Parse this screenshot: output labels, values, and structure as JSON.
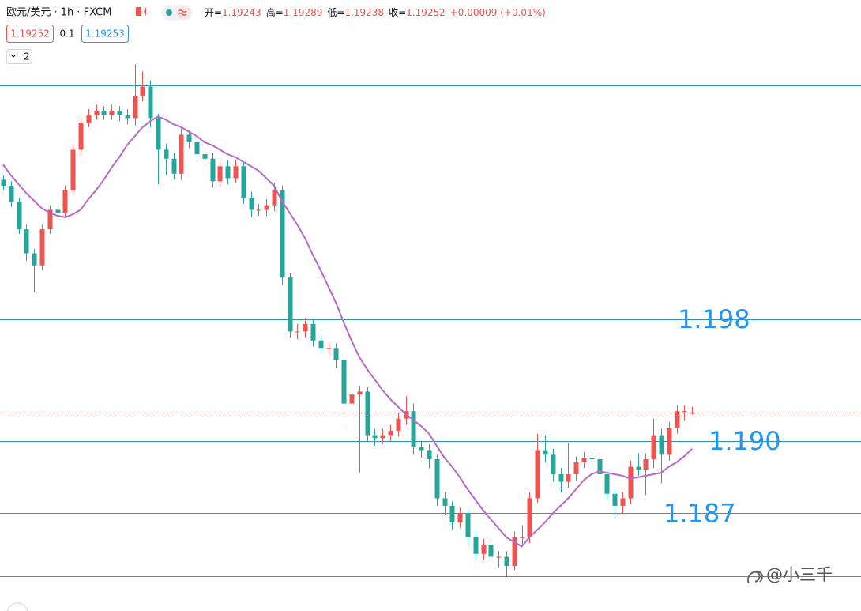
{
  "header": {
    "symbol": "欧元/美元 · 1h · FXCM",
    "ohlc": [
      {
        "label": "开=",
        "value": "1.19243"
      },
      {
        "label": "高=",
        "value": "1.19289"
      },
      {
        "label": "低=",
        "value": "1.19238"
      },
      {
        "label": "收=",
        "value": "1.19252"
      }
    ],
    "change": "+0.00009 (+0.01%)",
    "bid": "1.19252",
    "spread": "0.1",
    "ask": "1.19253",
    "collapse": "2"
  },
  "watermark": "@小三千",
  "chart_data": {
    "type": "candlestick",
    "up_color": "#ef5350",
    "down_color": "#26a69a",
    "ylim": [
      1.1793,
      1.2167
    ],
    "open": [
      1.208,
      1.2076,
      1.2065,
      1.2047,
      1.2031,
      1.2023,
      1.2047,
      1.206,
      1.2058,
      1.2073,
      1.21,
      1.2118,
      1.2123,
      1.2126,
      1.2123,
      1.2126,
      1.2123,
      1.2121,
      1.2136,
      1.2142,
      1.2121,
      1.21,
      1.2094,
      1.2084,
      1.211,
      1.2105,
      1.2097,
      1.2094,
      1.2079,
      1.2089,
      1.2081,
      1.2089,
      1.2068,
      1.206,
      1.206,
      1.2063,
      1.2073,
      1.2015,
      1.1979,
      1.1979,
      1.1984,
      1.1973,
      1.1968,
      1.1968,
      1.196,
      1.1931,
      1.1937,
      1.1939,
      1.191,
      1.1908,
      1.191,
      1.1913,
      1.1921,
      1.1926,
      1.1902,
      1.19,
      1.1894,
      1.1868,
      1.1863,
      1.1852,
      1.1858,
      1.1842,
      1.1831,
      1.1837,
      1.1829,
      1.1829,
      1.1823,
      1.1842,
      1.1842,
      1.1868,
      1.19,
      1.1897,
      1.1884,
      1.1879,
      1.1884,
      1.1892,
      1.1895,
      1.1894,
      1.1884,
      1.1871,
      1.1863,
      1.1868,
      1.1889,
      1.1887,
      1.1894,
      1.191,
      1.1897,
      1.1915,
      1.1926,
      1.19243
    ],
    "high": [
      1.2083,
      1.2079,
      1.2068,
      1.205,
      1.2034,
      1.205,
      1.2063,
      1.2063,
      1.2076,
      1.2103,
      1.2121,
      1.2127,
      1.213,
      1.2129,
      1.213,
      1.2129,
      1.2127,
      1.2157,
      1.2152,
      1.2146,
      1.2124,
      1.2104,
      1.2098,
      1.2114,
      1.2113,
      1.2109,
      1.2101,
      1.2098,
      1.2093,
      1.2093,
      1.2093,
      1.2092,
      1.2072,
      1.2064,
      1.2067,
      1.2078,
      1.2076,
      1.2018,
      1.1984,
      1.1988,
      1.1987,
      1.1977,
      1.1972,
      1.1971,
      1.1963,
      1.195,
      1.1943,
      1.1942,
      1.1914,
      1.1914,
      1.1917,
      1.1925,
      1.1936,
      1.1931,
      1.1906,
      1.1904,
      1.1897,
      1.1872,
      1.1866,
      1.1862,
      1.1861,
      1.1846,
      1.1841,
      1.184,
      1.1833,
      1.1833,
      1.1846,
      1.185,
      1.1872,
      1.1911,
      1.191,
      1.1901,
      1.1888,
      1.1905,
      1.1896,
      1.1899,
      1.1899,
      1.1897,
      1.1887,
      1.1874,
      1.1872,
      1.1893,
      1.1898,
      1.1898,
      1.1921,
      1.1914,
      1.1919,
      1.193,
      1.193,
      1.19289
    ],
    "low": [
      1.2073,
      1.2062,
      1.2044,
      1.2026,
      1.2005,
      1.202,
      1.2044,
      1.2055,
      1.2055,
      1.207,
      1.2097,
      1.2115,
      1.212,
      1.212,
      1.212,
      1.2119,
      1.2117,
      1.2116,
      1.2132,
      1.2115,
      1.2077,
      1.2083,
      1.208,
      1.208,
      1.2101,
      1.2092,
      1.209,
      1.2075,
      1.2076,
      1.2077,
      1.2078,
      1.2064,
      1.2055,
      1.2056,
      1.2056,
      1.2059,
      1.201,
      1.1975,
      1.1974,
      1.1975,
      1.1969,
      1.1964,
      1.1963,
      1.1955,
      1.1917,
      1.1927,
      1.1885,
      1.1906,
      1.1903,
      1.1904,
      1.1906,
      1.1909,
      1.1917,
      1.1897,
      1.1895,
      1.1888,
      1.1863,
      1.1857,
      1.1847,
      1.1848,
      1.1837,
      1.1827,
      1.1827,
      1.1825,
      1.1822,
      1.1816,
      1.182,
      1.1836,
      1.1838,
      1.1865,
      1.1892,
      1.1879,
      1.1872,
      1.1875,
      1.188,
      1.1888,
      1.189,
      1.188,
      1.1867,
      1.1856,
      1.1858,
      1.1864,
      1.1883,
      1.187,
      1.1888,
      1.1878,
      1.1893,
      1.1911,
      1.192,
      1.19238
    ],
    "close": [
      1.2076,
      1.2065,
      1.2047,
      1.2031,
      1.2023,
      1.2047,
      1.206,
      1.2058,
      1.2073,
      1.21,
      1.2118,
      1.2123,
      1.2126,
      1.2123,
      1.2126,
      1.2123,
      1.2121,
      1.2136,
      1.2142,
      1.2121,
      1.21,
      1.2094,
      1.2084,
      1.211,
      1.2105,
      1.2097,
      1.2094,
      1.2079,
      1.2089,
      1.2081,
      1.2089,
      1.2068,
      1.206,
      1.206,
      1.2063,
      1.2073,
      1.2015,
      1.1979,
      1.1979,
      1.1984,
      1.1973,
      1.1968,
      1.1968,
      1.196,
      1.1931,
      1.1937,
      1.1939,
      1.191,
      1.1908,
      1.191,
      1.1913,
      1.1921,
      1.1926,
      1.1902,
      1.19,
      1.1894,
      1.1868,
      1.1863,
      1.1852,
      1.1858,
      1.1842,
      1.1831,
      1.1837,
      1.1829,
      1.1829,
      1.1823,
      1.1842,
      1.1842,
      1.1868,
      1.19,
      1.1897,
      1.1884,
      1.1879,
      1.1884,
      1.1892,
      1.1895,
      1.1894,
      1.1884,
      1.1871,
      1.1863,
      1.1868,
      1.1889,
      1.1887,
      1.1894,
      1.191,
      1.1897,
      1.1915,
      1.1926,
      1.1926,
      1.19252
    ],
    "ma": {
      "color": "#b868c8",
      "values": [
        1.209,
        1.2083,
        1.2077,
        1.2071,
        1.2066,
        1.2061,
        1.2058,
        1.2056,
        1.2055,
        1.2057,
        1.206,
        1.2067,
        1.2073,
        1.208,
        1.2088,
        1.2095,
        1.2103,
        1.2109,
        1.2115,
        1.2119,
        1.2122,
        1.212,
        1.2117,
        1.2115,
        1.2112,
        1.2109,
        1.2105,
        1.2103,
        1.21,
        1.2097,
        1.2095,
        1.2092,
        1.2089,
        1.2086,
        1.2081,
        1.2076,
        1.2066,
        1.2058,
        1.205,
        1.2041,
        1.203,
        1.202,
        1.2009,
        1.1998,
        1.1985,
        1.1973,
        1.1962,
        1.1954,
        1.1947,
        1.194,
        1.1934,
        1.1929,
        1.1924,
        1.192,
        1.1916,
        1.1911,
        1.1903,
        1.1895,
        1.1889,
        1.1882,
        1.1874,
        1.1867,
        1.186,
        1.1854,
        1.1848,
        1.1842,
        1.1839,
        1.1836,
        1.1842,
        1.1847,
        1.1852,
        1.1858,
        1.1863,
        1.1868,
        1.1874,
        1.188,
        1.1884,
        1.1886,
        1.1885,
        1.1884,
        1.1883,
        1.1881,
        1.1882,
        1.1883,
        1.1884,
        1.1885,
        1.1889,
        1.1892,
        1.1896,
        1.1901
      ]
    },
    "levels": {
      "color": "#2f9aa8",
      "values": [
        1.2143,
        1.1987,
        1.1906,
        1.1858,
        1.1816
      ]
    },
    "price_line": {
      "value": 1.19252,
      "color": "#c0504d"
    },
    "annotations": [
      "1.198",
      "1.190",
      "1.187"
    ],
    "annotation_color": "#2196f3"
  }
}
